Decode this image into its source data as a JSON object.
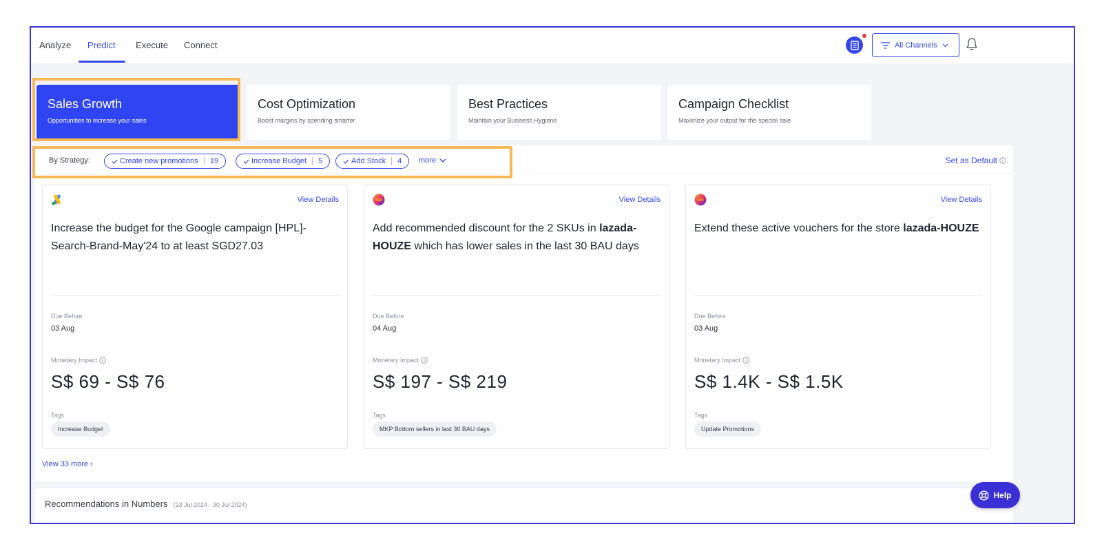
{
  "nav": {
    "tabs": [
      "Analyze",
      "Predict",
      "Execute",
      "Connect"
    ],
    "active_tab": "Predict",
    "channel_filter": "All Channels"
  },
  "categories": [
    {
      "title": "Sales Growth",
      "subtitle": "Opportunities to increase your sales",
      "active": true
    },
    {
      "title": "Cost Optimization",
      "subtitle": "Boost margins by spending smarter",
      "active": false
    },
    {
      "title": "Best Practices",
      "subtitle": "Maintain your Business Hygiene",
      "active": false
    },
    {
      "title": "Campaign Checklist",
      "subtitle": "Maximize your output for the special sale",
      "active": false
    }
  ],
  "strategy": {
    "label": "By Strategy:",
    "chips": [
      {
        "label": "Create new promotions",
        "count": "19"
      },
      {
        "label": "Increase Budget",
        "count": "5"
      },
      {
        "label": "Add Stock",
        "count": "4"
      }
    ],
    "more_label": "more",
    "set_default_label": "Set as Default"
  },
  "recommendations": [
    {
      "logo": "google-ads-icon",
      "view_details": "View Details",
      "title_plain": "Increase the budget for the Google campaign [HPL]-Search-Brand-May'24 to at least SGD27.03",
      "title_bold": "",
      "title_after": "",
      "due_label": "Due Before",
      "due_value": "03 Aug",
      "impact_label": "Monetary Impact",
      "impact_value": "S$ 69 - S$ 76",
      "tags_label": "Tags",
      "tag": "Increase Budget"
    },
    {
      "logo": "lazada-icon",
      "view_details": "View Details",
      "title_plain": "Add recommended discount for the 2 SKUs in ",
      "title_bold": "lazada-HOUZE",
      "title_after": " which has lower sales in the last 30 BAU days",
      "due_label": "Due Before",
      "due_value": "04 Aug",
      "impact_label": "Monetary Impact",
      "impact_value": "S$ 197 - S$ 219",
      "tags_label": "Tags",
      "tag": "MKP Bottom sellers in last 30 BAU days"
    },
    {
      "logo": "lazada-icon",
      "view_details": "View Details",
      "title_plain": "Extend these active vouchers for the store ",
      "title_bold": "lazada-HOUZE",
      "title_after": "",
      "due_label": "Due Before",
      "due_value": "03 Aug",
      "impact_label": "Monetary Impact",
      "impact_value": "S$ 1.4K - S$ 1.5K",
      "tags_label": "Tags",
      "tag": "Update Promotions"
    }
  ],
  "view_more_label": "View 33 more ›",
  "numbers": {
    "title": "Recommendations in Numbers",
    "range": "(23 Jul 2024 - 30 Jul 2024)"
  },
  "help_label": "Help",
  "colors": {
    "accent": "#3347e8",
    "highlight": "#f7b955",
    "frame": "#3b35d6"
  }
}
